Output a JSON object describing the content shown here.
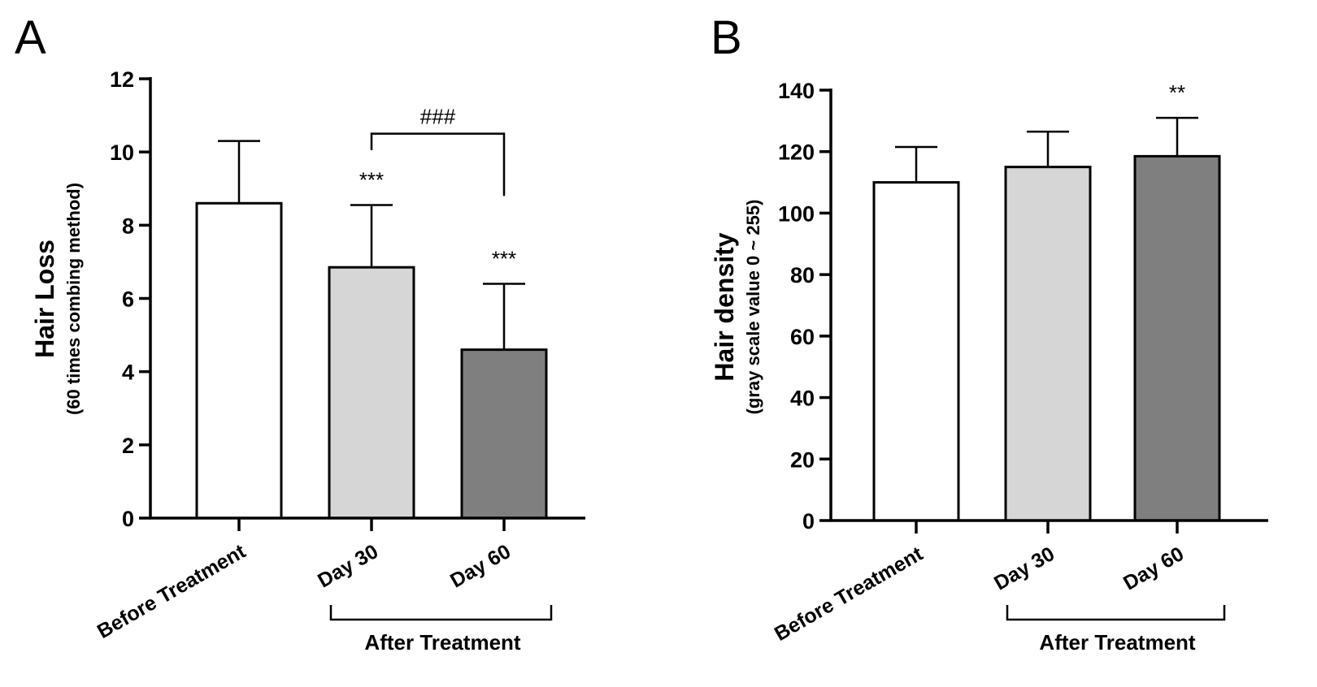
{
  "chart_data": [
    {
      "type": "bar",
      "panel_label": "A",
      "title": "",
      "ylabel": "Hair Loss",
      "ylabel_sub": "(60 times combing method)",
      "ylim": [
        0,
        12
      ],
      "yticks": [
        0,
        2,
        4,
        6,
        8,
        10,
        12
      ],
      "categories": [
        "Before Treatment",
        "Day 30",
        "Day 60"
      ],
      "values": [
        8.6,
        6.85,
        4.6
      ],
      "errors": [
        1.7,
        1.7,
        1.8
      ],
      "colors": [
        "#ffffff",
        "#d6d6d6",
        "#7f7f7f"
      ],
      "annotations": [
        "",
        "***",
        "***"
      ],
      "comparison": {
        "from": "Day 30",
        "to": "Day 60",
        "label": "###"
      },
      "group_label": "After Treatment",
      "group_categories": [
        "Day 30",
        "Day 60"
      ]
    },
    {
      "type": "bar",
      "panel_label": "B",
      "title": "",
      "ylabel": "Hair density",
      "ylabel_sub": "(gray scale value 0 ~ 255)",
      "ylim": [
        0,
        140
      ],
      "yticks": [
        0,
        20,
        40,
        60,
        80,
        100,
        120,
        140
      ],
      "categories": [
        "Before Treatment",
        "Day 30",
        "Day 60"
      ],
      "values": [
        110,
        115,
        118.5
      ],
      "errors": [
        11.5,
        11.5,
        12.5
      ],
      "colors": [
        "#ffffff",
        "#d6d6d6",
        "#7f7f7f"
      ],
      "annotations": [
        "",
        "",
        "**"
      ],
      "group_label": "After Treatment",
      "group_categories": [
        "Day 30",
        "Day 60"
      ]
    }
  ]
}
